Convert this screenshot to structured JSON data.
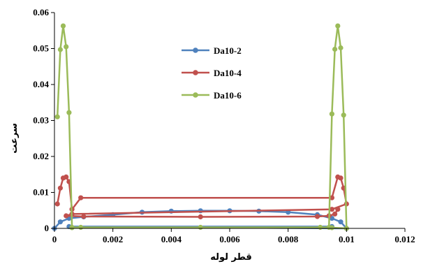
{
  "chart_data": {
    "type": "line",
    "title": "",
    "xlabel": "قطر لوله",
    "ylabel": "سرعت",
    "xlim": [
      0,
      0.012
    ],
    "ylim": [
      0,
      0.06
    ],
    "x_ticks": [
      "0",
      "0.002",
      "0.004",
      "0.006",
      "0.008",
      "0.01",
      "0.012"
    ],
    "y_ticks": [
      "0",
      "0.01",
      "0.02",
      "0.03",
      "0.04",
      "0.05",
      "0.06"
    ],
    "grid": false,
    "legend_position": "center-top",
    "series": [
      {
        "name": "Da10-2",
        "color": "#4f81bd",
        "x": [
          0.0,
          0.0002,
          0.0005,
          0.001,
          0.002,
          0.003,
          0.004,
          0.005,
          0.006,
          0.007,
          0.008,
          0.009,
          0.0095,
          0.0098,
          0.01,
          0.0005,
          0.0095
        ],
        "y": [
          0.0,
          0.0018,
          0.0028,
          0.0032,
          0.0038,
          0.0045,
          0.0048,
          0.0049,
          0.0049,
          0.0048,
          0.0045,
          0.0038,
          0.0028,
          0.0018,
          0.0,
          0.0005,
          0.0005
        ]
      },
      {
        "name": "Da10-4",
        "color": "#c0504d",
        "x": [
          0.0001,
          0.0002,
          0.0003,
          0.0004,
          0.0005,
          0.0006,
          0.0009,
          0.0095,
          0.0097,
          0.0098,
          0.0099,
          0.01,
          0.0095,
          0.0006,
          0.0004,
          0.001,
          0.005,
          0.009,
          0.0094,
          0.0096,
          0.0097
        ],
        "y": [
          0.0068,
          0.0112,
          0.014,
          0.0143,
          0.013,
          0.0053,
          0.0085,
          0.0085,
          0.0143,
          0.014,
          0.0112,
          0.0068,
          0.0053,
          0.004,
          0.0035,
          0.0033,
          0.0032,
          0.0033,
          0.0035,
          0.004,
          0.0053
        ]
      },
      {
        "name": "Da10-6",
        "color": "#9bbb59",
        "x": [
          0.0001,
          0.0002,
          0.0003,
          0.0004,
          0.0005,
          0.0006,
          0.0009,
          0.005,
          0.0091,
          0.0094,
          0.0095,
          0.0096,
          0.0097,
          0.0098,
          0.0099,
          0.01,
          0.0095,
          0.0006
        ],
        "y": [
          0.031,
          0.0497,
          0.0563,
          0.0505,
          0.0322,
          0.0003,
          0.0003,
          0.0003,
          0.0003,
          0.0003,
          0.0318,
          0.0498,
          0.0563,
          0.0502,
          0.0315,
          0.0,
          0.0002,
          0.0002
        ]
      }
    ]
  }
}
